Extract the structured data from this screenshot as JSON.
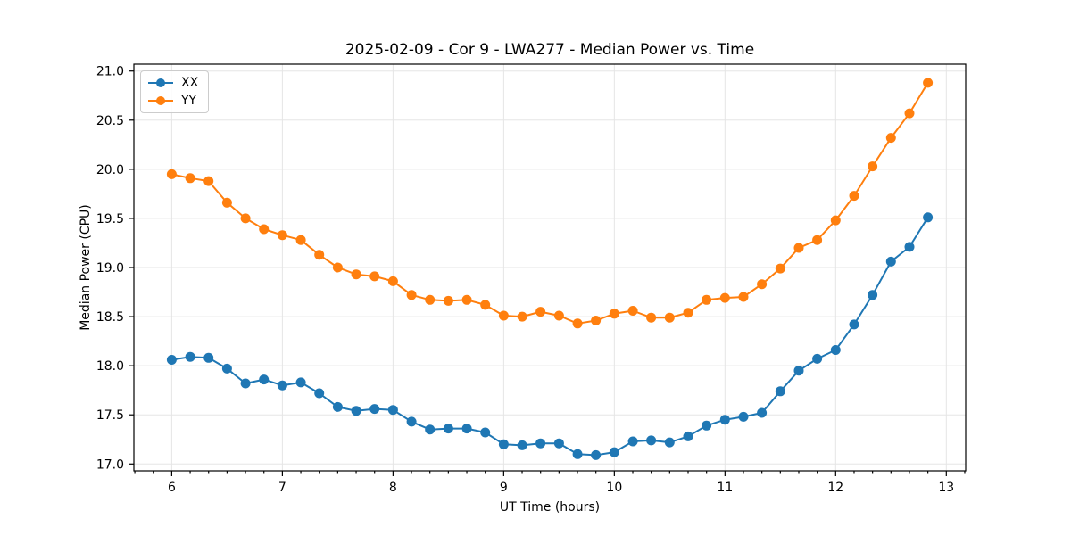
{
  "chart_data": {
    "type": "line",
    "title": "2025-02-09 - Cor 9 - LWA277 - Median Power vs. Time",
    "xlabel": "UT Time (hours)",
    "ylabel": "Median Power (CPU)",
    "legend_position": "upper left",
    "grid": true,
    "grid_color": "#e5e5e5",
    "spine_color": "#000000",
    "background_color": "#ffffff",
    "xlim": [
      5.658,
      13.175
    ],
    "ylim": [
      16.93,
      21.07
    ],
    "xticks": [
      6,
      7,
      8,
      9,
      10,
      11,
      12,
      13
    ],
    "xtick_labels": [
      "6",
      "7",
      "8",
      "9",
      "10",
      "11",
      "12",
      "13"
    ],
    "yticks": [
      17.0,
      17.5,
      18.0,
      18.5,
      19.0,
      19.5,
      20.0,
      20.5,
      21.0
    ],
    "ytick_labels": [
      "17.0",
      "17.5",
      "18.0",
      "18.5",
      "19.0",
      "19.5",
      "20.0",
      "20.5",
      "21.0"
    ],
    "x_minor_tick_step_hours": 0.1667,
    "x": [
      6.0,
      6.167,
      6.333,
      6.5,
      6.667,
      6.833,
      7.0,
      7.167,
      7.333,
      7.5,
      7.667,
      7.833,
      8.0,
      8.167,
      8.333,
      8.5,
      8.667,
      8.833,
      9.0,
      9.167,
      9.333,
      9.5,
      9.667,
      9.833,
      10.0,
      10.167,
      10.333,
      10.5,
      10.667,
      10.833,
      11.0,
      11.167,
      11.333,
      11.5,
      11.667,
      11.833,
      12.0,
      12.167,
      12.333,
      12.5,
      12.667,
      12.833
    ],
    "series": [
      {
        "name": "XX",
        "color": "#1f77b4",
        "marker": "circle",
        "values": [
          18.06,
          18.09,
          18.08,
          17.97,
          17.82,
          17.86,
          17.8,
          17.83,
          17.72,
          17.58,
          17.54,
          17.56,
          17.55,
          17.43,
          17.35,
          17.36,
          17.36,
          17.32,
          17.2,
          17.19,
          17.21,
          17.21,
          17.1,
          17.09,
          17.12,
          17.23,
          17.24,
          17.22,
          17.28,
          17.39,
          17.45,
          17.48,
          17.52,
          17.74,
          17.95,
          18.07,
          18.16,
          18.42,
          18.72,
          19.06,
          19.21,
          19.51
        ]
      },
      {
        "name": "YY",
        "color": "#ff7f0e",
        "marker": "circle",
        "values": [
          19.95,
          19.91,
          19.88,
          19.66,
          19.5,
          19.39,
          19.33,
          19.28,
          19.13,
          19.0,
          18.93,
          18.91,
          18.86,
          18.72,
          18.67,
          18.66,
          18.67,
          18.62,
          18.51,
          18.5,
          18.55,
          18.51,
          18.43,
          18.46,
          18.53,
          18.56,
          18.49,
          18.49,
          18.54,
          18.67,
          18.69,
          18.7,
          18.83,
          18.99,
          19.2,
          19.28,
          19.48,
          19.73,
          20.03,
          20.32,
          20.57,
          20.88
        ]
      }
    ]
  }
}
